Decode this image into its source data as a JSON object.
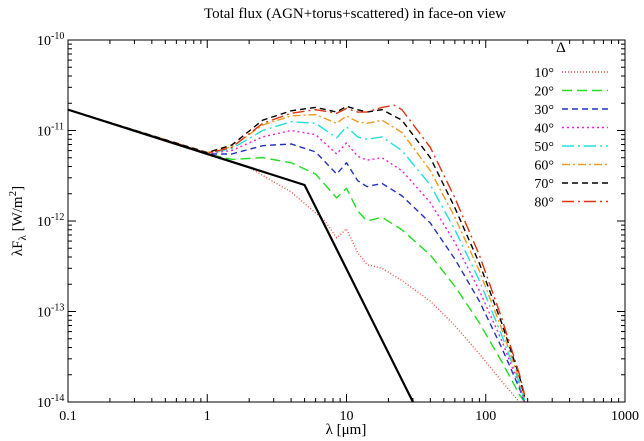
{
  "chart_data": {
    "type": "line",
    "title": "Total flux (AGN+torus+scattered) in face-on view",
    "xlabel": {
      "main": "λ [μm]"
    },
    "ylabel": {
      "pre": "λF",
      "sub": "λ",
      "mid": " [W/m",
      "sup": "2",
      "post": "]"
    },
    "x_scale": "log",
    "y_scale": "log",
    "xlim": [
      0.1,
      1000
    ],
    "ylim": [
      1e-14,
      1e-10
    ],
    "x_ticks": [
      {
        "value": 0.1,
        "label": "0.1"
      },
      {
        "value": 1,
        "label": "1"
      },
      {
        "value": 10,
        "label": "10"
      },
      {
        "value": 100,
        "label": "100"
      },
      {
        "value": 1000,
        "label": "1000"
      }
    ],
    "y_ticks": [
      {
        "value": 1e-14,
        "base": "10",
        "exp": "-14"
      },
      {
        "value": 1e-13,
        "base": "10",
        "exp": "-13"
      },
      {
        "value": 1e-12,
        "base": "10",
        "exp": "-12"
      },
      {
        "value": 1e-11,
        "base": "10",
        "exp": "-11"
      },
      {
        "value": 1e-10,
        "base": "10",
        "exp": "-10"
      }
    ],
    "legend": {
      "title": "Δ",
      "placement": "top-right"
    },
    "series": [
      {
        "name": "10°",
        "color": "#e8503a",
        "dash": "1,2",
        "points": [
          [
            0.1,
            1.7e-11
          ],
          [
            1,
            5.6e-12
          ],
          [
            2,
            3.9e-12
          ],
          [
            4,
            2.1e-12
          ],
          [
            7,
            1e-12
          ],
          [
            8.5,
            6.5e-13
          ],
          [
            10,
            8.2e-13
          ],
          [
            12,
            4.5e-13
          ],
          [
            14,
            3.3e-13
          ],
          [
            18,
            3e-13
          ],
          [
            25,
            2.2e-13
          ],
          [
            40,
            1.3e-13
          ],
          [
            60,
            7e-14
          ],
          [
            90,
            3.4e-14
          ],
          [
            130,
            1.7e-14
          ],
          [
            170,
            1.05e-14
          ]
        ]
      },
      {
        "name": "20°",
        "color": "#22dd22",
        "dash": "10,5",
        "points": [
          [
            0.1,
            1.7e-11
          ],
          [
            1,
            5.5e-12
          ],
          [
            1.5,
            4.8e-12
          ],
          [
            2.5,
            5e-12
          ],
          [
            4,
            4.4e-12
          ],
          [
            6,
            3.3e-12
          ],
          [
            8.5,
            1.8e-12
          ],
          [
            10,
            2.3e-12
          ],
          [
            12,
            1.3e-12
          ],
          [
            14,
            1e-12
          ],
          [
            18,
            1.1e-12
          ],
          [
            25,
            8e-13
          ],
          [
            40,
            4.2e-13
          ],
          [
            60,
            1.9e-13
          ],
          [
            90,
            7.5e-14
          ],
          [
            130,
            2.8e-14
          ],
          [
            175,
            1.2e-14
          ],
          [
            190,
            1e-14
          ]
        ]
      },
      {
        "name": "30°",
        "color": "#2233bb",
        "dash": "6,4",
        "points": [
          [
            0.1,
            1.7e-11
          ],
          [
            1,
            5.5e-12
          ],
          [
            1.5,
            5.5e-12
          ],
          [
            2.5,
            6.8e-12
          ],
          [
            4,
            7.1e-12
          ],
          [
            6,
            5.8e-12
          ],
          [
            8.5,
            3.3e-12
          ],
          [
            10,
            4.4e-12
          ],
          [
            12,
            2.8e-12
          ],
          [
            14,
            2.4e-12
          ],
          [
            18,
            2.6e-12
          ],
          [
            25,
            1.9e-12
          ],
          [
            40,
            9.5e-13
          ],
          [
            60,
            3.8e-13
          ],
          [
            90,
            1.3e-13
          ],
          [
            130,
            4e-14
          ],
          [
            175,
            1.4e-14
          ],
          [
            190,
            1e-14
          ]
        ]
      },
      {
        "name": "40°",
        "color": "#ee22cc",
        "dash": "2,3",
        "points": [
          [
            0.1,
            1.7e-11
          ],
          [
            1,
            5.6e-12
          ],
          [
            1.5,
            6e-12
          ],
          [
            2.5,
            8.5e-12
          ],
          [
            4,
            1e-11
          ],
          [
            6,
            9e-12
          ],
          [
            8.5,
            5.5e-12
          ],
          [
            10,
            7.3e-12
          ],
          [
            12,
            5.2e-12
          ],
          [
            14,
            4.7e-12
          ],
          [
            18,
            5e-12
          ],
          [
            25,
            3.6e-12
          ],
          [
            40,
            1.6e-12
          ],
          [
            60,
            5.8e-13
          ],
          [
            90,
            1.7e-13
          ],
          [
            130,
            4.8e-14
          ],
          [
            175,
            1.5e-14
          ],
          [
            190,
            1e-14
          ]
        ]
      },
      {
        "name": "50°",
        "color": "#22dddd",
        "dash": "12,4,2,4",
        "points": [
          [
            0.1,
            1.7e-11
          ],
          [
            1,
            5.6e-12
          ],
          [
            1.5,
            6.3e-12
          ],
          [
            2.5,
            1e-11
          ],
          [
            4,
            1.25e-11
          ],
          [
            6,
            1.2e-11
          ],
          [
            8.5,
            8.3e-12
          ],
          [
            10,
            1.1e-11
          ],
          [
            12,
            8.5e-12
          ],
          [
            14,
            8e-12
          ],
          [
            18,
            8.5e-12
          ],
          [
            25,
            6e-12
          ],
          [
            40,
            2.5e-12
          ],
          [
            60,
            8e-13
          ],
          [
            90,
            2.2e-13
          ],
          [
            130,
            5.5e-14
          ],
          [
            175,
            1.6e-14
          ],
          [
            190,
            1.05e-14
          ]
        ]
      },
      {
        "name": "60°",
        "color": "#ee9922",
        "dash": "8,3,2,3",
        "points": [
          [
            0.1,
            1.7e-11
          ],
          [
            1,
            5.7e-12
          ],
          [
            1.5,
            6.6e-12
          ],
          [
            2.5,
            1.15e-11
          ],
          [
            4,
            1.45e-11
          ],
          [
            6,
            1.5e-11
          ],
          [
            8.5,
            1.2e-11
          ],
          [
            10,
            1.45e-11
          ],
          [
            12,
            1.25e-11
          ],
          [
            14,
            1.2e-11
          ],
          [
            18,
            1.3e-11
          ],
          [
            25,
            9.5e-12
          ],
          [
            40,
            3.6e-12
          ],
          [
            60,
            1.1e-12
          ],
          [
            90,
            2.8e-13
          ],
          [
            130,
            6.5e-14
          ],
          [
            175,
            1.75e-14
          ],
          [
            190,
            1.1e-14
          ]
        ]
      },
      {
        "name": "70°",
        "color": "#000000",
        "dash": "6,4",
        "points": [
          [
            0.1,
            1.7e-11
          ],
          [
            1,
            5.7e-12
          ],
          [
            1.5,
            6.9e-12
          ],
          [
            2.5,
            1.3e-11
          ],
          [
            4,
            1.65e-11
          ],
          [
            6,
            1.8e-11
          ],
          [
            8.5,
            1.6e-11
          ],
          [
            10,
            1.85e-11
          ],
          [
            12,
            1.7e-11
          ],
          [
            14,
            1.6e-11
          ],
          [
            18,
            1.7e-11
          ],
          [
            25,
            1.3e-11
          ],
          [
            40,
            5e-12
          ],
          [
            60,
            1.4e-12
          ],
          [
            90,
            3.4e-13
          ],
          [
            130,
            7.5e-14
          ],
          [
            175,
            1.9e-14
          ],
          [
            190,
            1.15e-14
          ]
        ]
      },
      {
        "name": "80°",
        "color": "#dd3311",
        "dash": "12,4,2,4",
        "points": [
          [
            0.1,
            1.7e-11
          ],
          [
            1,
            5.6e-12
          ],
          [
            1.5,
            6.5e-12
          ],
          [
            2.5,
            1.2e-11
          ],
          [
            4,
            1.55e-11
          ],
          [
            6,
            1.7e-11
          ],
          [
            8.5,
            1.55e-11
          ],
          [
            10,
            1.75e-11
          ],
          [
            12,
            1.6e-11
          ],
          [
            14,
            1.6e-11
          ],
          [
            18,
            1.8e-11
          ],
          [
            22,
            1.9e-11
          ],
          [
            25,
            1.7e-11
          ],
          [
            40,
            6.5e-12
          ],
          [
            60,
            1.8e-12
          ],
          [
            90,
            4.2e-13
          ],
          [
            130,
            8.5e-14
          ],
          [
            175,
            2e-14
          ],
          [
            190,
            1.2e-14
          ]
        ]
      },
      {
        "color": "#000000",
        "dash": "",
        "width": 2.2,
        "points": [
          [
            0.1,
            1.7e-11
          ],
          [
            5,
            2.5e-12
          ],
          [
            30,
            1e-14
          ]
        ]
      }
    ]
  }
}
